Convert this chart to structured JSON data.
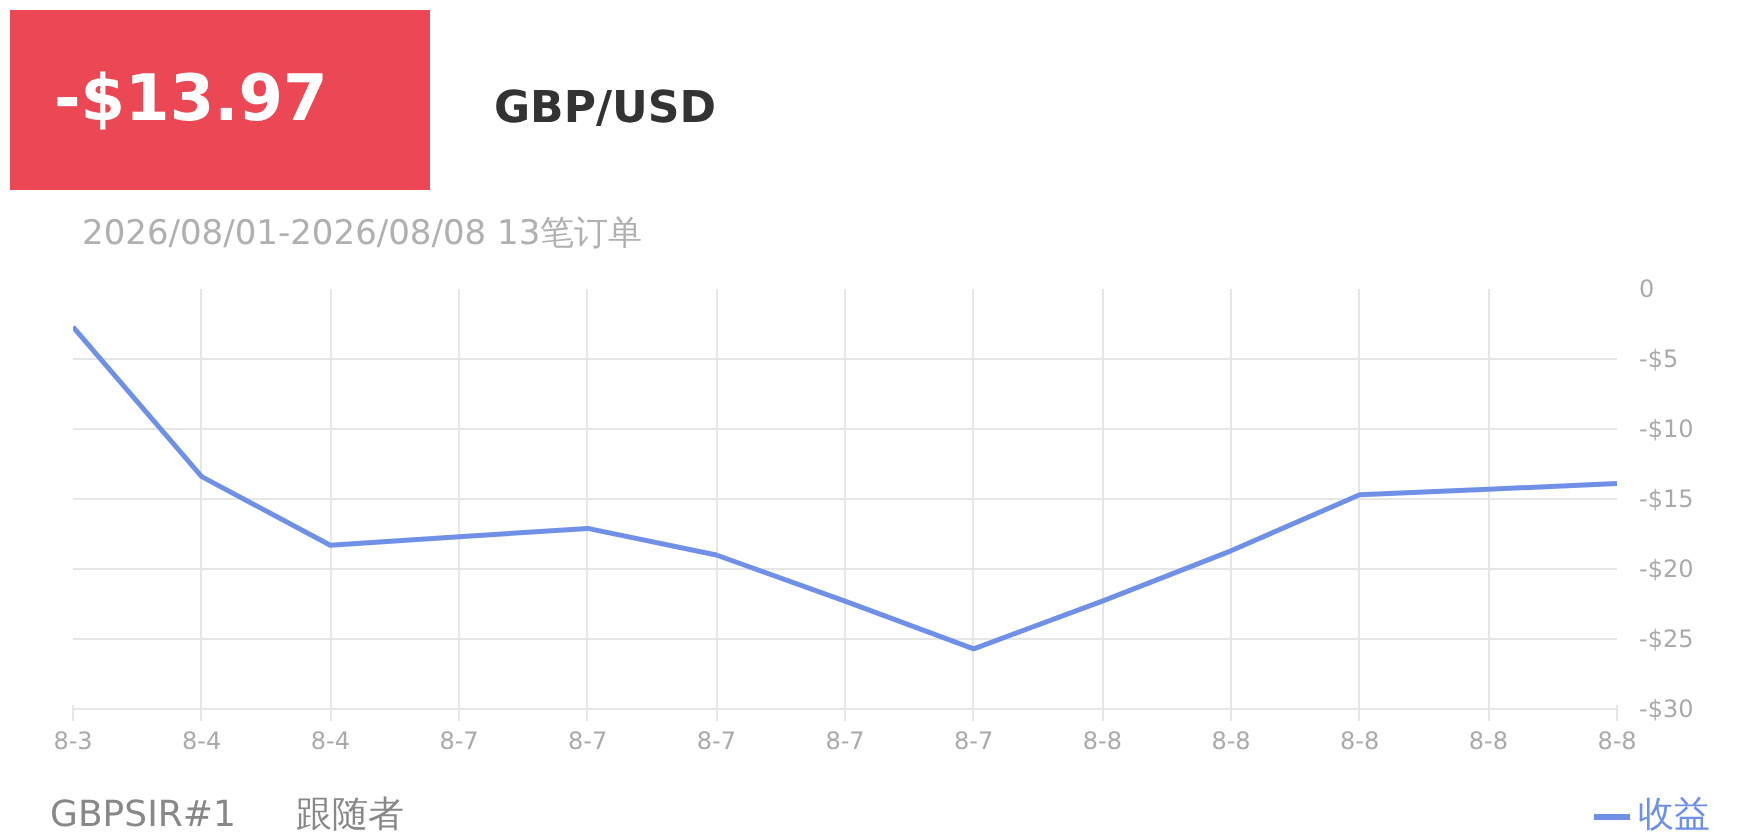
{
  "chart_data": {
    "type": "line",
    "title": "GBP/USD",
    "subtitle": "2026/08/01-2026/08/08 13笔订单",
    "annotations": [
      "-$13.97",
      "GBPSIR#1",
      "跟随者"
    ],
    "categories": [
      "8-3",
      "8-4",
      "8-4",
      "8-7",
      "8-7",
      "8-7",
      "8-7",
      "8-7",
      "8-8",
      "8-8",
      "8-8",
      "8-8",
      "8-8"
    ],
    "series": [
      {
        "name": "收益",
        "color": "#7090e8",
        "values": [
          -2.7,
          -13.4,
          -18.3,
          -17.7,
          -17.1,
          -19.0,
          -22.3,
          -25.7,
          -22.3,
          -18.7,
          -14.7,
          -14.3,
          -13.9
        ]
      }
    ],
    "ylim": [
      -30,
      0
    ],
    "yticks": [
      0,
      {
        "value": -5,
        "label": "-$5"
      },
      {
        "value": -10,
        "label": "-$10"
      },
      {
        "value": -15,
        "label": "-$15"
      },
      {
        "value": -20,
        "label": "-$20"
      },
      {
        "value": -25,
        "label": "-$25"
      },
      {
        "value": -30,
        "label": "-$30"
      }
    ],
    "grid": true,
    "legend": "bottom right",
    "marker": "none",
    "line_style": "solid"
  }
}
